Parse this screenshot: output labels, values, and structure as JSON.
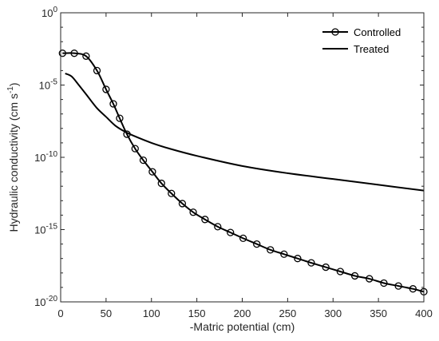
{
  "chart_data": {
    "type": "line",
    "xlabel": "-Matric potential (cm)",
    "ylabel_main": "Hydraulic conductivity (cm s",
    "ylabel_sup": "-1",
    "ylabel_close": ")",
    "xlim": [
      0,
      400
    ],
    "ylim": [
      1e-20,
      1
    ],
    "y_scale": "log",
    "grid": false,
    "legend_position": "top-right",
    "x_ticks": [
      0,
      50,
      100,
      150,
      200,
      250,
      300,
      350,
      400
    ],
    "y_ticks": [
      {
        "base": "10",
        "exp": "-20",
        "value": -20
      },
      {
        "base": "10",
        "exp": "-15",
        "value": -15
      },
      {
        "base": "10",
        "exp": "-10",
        "value": -10
      },
      {
        "base": "10",
        "exp": "-5",
        "value": -5
      },
      {
        "base": "10",
        "exp": "0",
        "value": 0
      }
    ],
    "series": [
      {
        "name": "Controlled",
        "marker": "circle",
        "x": [
          2,
          15,
          28,
          40,
          50,
          58,
          65,
          73,
          82,
          91,
          101,
          111,
          122,
          134,
          146,
          159,
          173,
          187,
          201,
          216,
          231,
          246,
          261,
          276,
          292,
          308,
          324,
          340,
          356,
          372,
          388,
          400
        ],
        "log10_y": [
          -2.8,
          -2.8,
          -3.0,
          -4.0,
          -5.3,
          -6.3,
          -7.3,
          -8.4,
          -9.4,
          -10.2,
          -11.0,
          -11.8,
          -12.5,
          -13.2,
          -13.8,
          -14.3,
          -14.8,
          -15.2,
          -15.6,
          -16.0,
          -16.4,
          -16.7,
          -17.0,
          -17.3,
          -17.6,
          -17.9,
          -18.2,
          -18.4,
          -18.7,
          -18.9,
          -19.1,
          -19.3
        ]
      },
      {
        "name": "Treated",
        "marker": "none",
        "x": [
          5,
          12,
          20,
          30,
          40,
          50,
          60,
          70,
          80,
          100,
          120,
          150,
          200,
          250,
          300,
          350,
          400
        ],
        "log10_y": [
          -4.2,
          -4.4,
          -5.0,
          -5.8,
          -6.6,
          -7.2,
          -7.8,
          -8.2,
          -8.5,
          -9.0,
          -9.4,
          -9.9,
          -10.6,
          -11.1,
          -11.5,
          -11.9,
          -12.3
        ]
      }
    ]
  }
}
